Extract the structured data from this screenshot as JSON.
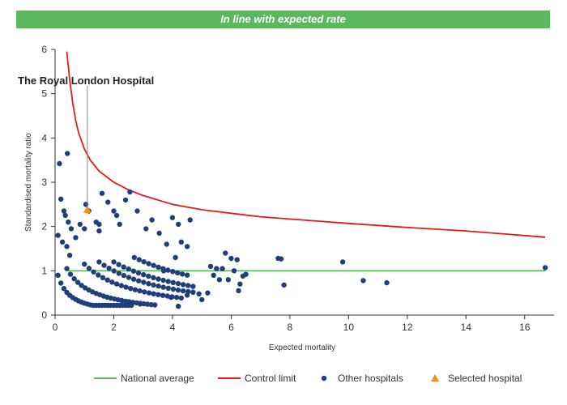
{
  "banner": {
    "text": "In line with expected rate",
    "color": "#5cb85c"
  },
  "chart_data": {
    "type": "scatter",
    "xlabel": "Expected mortality",
    "ylabel": "Standardised mortality ratio",
    "xlim": [
      0,
      17
    ],
    "ylim": [
      0,
      6
    ],
    "xticks": [
      0,
      2,
      4,
      6,
      8,
      10,
      12,
      14,
      16
    ],
    "yticks": [
      0,
      1,
      2,
      3,
      4,
      5,
      6
    ],
    "grid": false,
    "legend_position": "bottom",
    "annotation": {
      "text": "The Royal London Hospital",
      "x": 1.1,
      "y": 2.38
    },
    "series": [
      {
        "name": "National average",
        "kind": "line",
        "color": "#5cb85c",
        "x": [
          0.4,
          16.7
        ],
        "y": [
          1,
          1
        ]
      },
      {
        "name": "Control limit",
        "kind": "line",
        "color": "#e41a1c",
        "x": [
          0.4,
          0.5,
          0.6,
          0.7,
          0.8,
          1.0,
          1.2,
          1.5,
          2.0,
          2.5,
          3.0,
          4.0,
          5.0,
          6.0,
          7.0,
          8.0,
          10.0,
          12.0,
          14.0,
          16.7
        ],
        "y": [
          5.95,
          5.3,
          4.8,
          4.4,
          4.12,
          3.75,
          3.5,
          3.25,
          3.0,
          2.83,
          2.7,
          2.5,
          2.38,
          2.3,
          2.22,
          2.17,
          2.07,
          1.98,
          1.9,
          1.76
        ]
      },
      {
        "name": "Other hospitals",
        "kind": "scatter",
        "color": "#1f3f7a",
        "points": [
          [
            0.15,
            3.42
          ],
          [
            0.42,
            3.65
          ],
          [
            0.2,
            2.62
          ],
          [
            0.3,
            2.35
          ],
          [
            0.35,
            2.25
          ],
          [
            0.45,
            2.1
          ],
          [
            0.55,
            1.95
          ],
          [
            0.4,
            1.55
          ],
          [
            0.25,
            1.65
          ],
          [
            0.1,
            1.8
          ],
          [
            0.5,
            1.35
          ],
          [
            0.7,
            1.75
          ],
          [
            1.0,
            1.95
          ],
          [
            0.85,
            2.05
          ],
          [
            1.05,
            2.5
          ],
          [
            1.15,
            2.35
          ],
          [
            1.4,
            2.1
          ],
          [
            1.5,
            2.05
          ],
          [
            1.6,
            2.75
          ],
          [
            1.5,
            1.9
          ],
          [
            1.8,
            2.55
          ],
          [
            2.0,
            2.35
          ],
          [
            2.1,
            2.25
          ],
          [
            2.2,
            2.05
          ],
          [
            2.4,
            2.6
          ],
          [
            2.55,
            2.78
          ],
          [
            2.8,
            2.35
          ],
          [
            3.1,
            1.95
          ],
          [
            3.3,
            2.15
          ],
          [
            3.55,
            1.85
          ],
          [
            3.8,
            1.6
          ],
          [
            4.0,
            2.2
          ],
          [
            4.2,
            2.05
          ],
          [
            4.3,
            1.65
          ],
          [
            4.5,
            1.55
          ],
          [
            4.6,
            2.15
          ],
          [
            4.1,
            1.3
          ],
          [
            3.7,
            1.0
          ],
          [
            5.3,
            1.1
          ],
          [
            5.4,
            0.9
          ],
          [
            5.5,
            1.05
          ],
          [
            5.6,
            0.8
          ],
          [
            5.7,
            1.05
          ],
          [
            5.8,
            1.4
          ],
          [
            5.9,
            0.8
          ],
          [
            6.0,
            1.28
          ],
          [
            6.1,
            1.0
          ],
          [
            6.2,
            1.25
          ],
          [
            6.3,
            0.7
          ],
          [
            6.4,
            0.88
          ],
          [
            6.5,
            0.92
          ],
          [
            5.2,
            0.5
          ],
          [
            5.0,
            0.35
          ],
          [
            6.25,
            0.55
          ],
          [
            7.6,
            1.28
          ],
          [
            7.7,
            1.27
          ],
          [
            7.8,
            0.68
          ],
          [
            9.8,
            1.2
          ],
          [
            10.5,
            0.78
          ],
          [
            11.3,
            0.73
          ],
          [
            16.7,
            1.07
          ],
          [
            4.2,
            0.2
          ],
          [
            2.5,
            0.3
          ],
          [
            2.9,
            0.25
          ],
          [
            4.5,
            0.45
          ],
          [
            4.7,
            0.52
          ],
          [
            4.9,
            0.48
          ],
          [
            3.95,
            0.4
          ]
        ],
        "curves": [
          {
            "x_start": 0.1,
            "x_end": 2.6,
            "n": 26,
            "level": 0.9,
            "shape": 0.35
          },
          {
            "x_start": 0.4,
            "x_end": 3.4,
            "n": 25,
            "level": 1.05,
            "shape": 0.6
          },
          {
            "x_start": 1.0,
            "x_end": 4.3,
            "n": 22,
            "level": 1.15,
            "shape": 0.95
          },
          {
            "x_start": 1.5,
            "x_end": 4.7,
            "n": 20,
            "level": 1.2,
            "shape": 1.25
          },
          {
            "x_start": 2.0,
            "x_end": 4.7,
            "n": 17,
            "level": 1.2,
            "shape": 1.6
          },
          {
            "x_start": 2.7,
            "x_end": 4.5,
            "n": 12,
            "level": 1.3,
            "shape": 1.85
          }
        ]
      },
      {
        "name": "Selected hospital",
        "kind": "marker",
        "color": "#f28e1c",
        "x": [
          1.1
        ],
        "y": [
          2.38
        ]
      }
    ]
  }
}
